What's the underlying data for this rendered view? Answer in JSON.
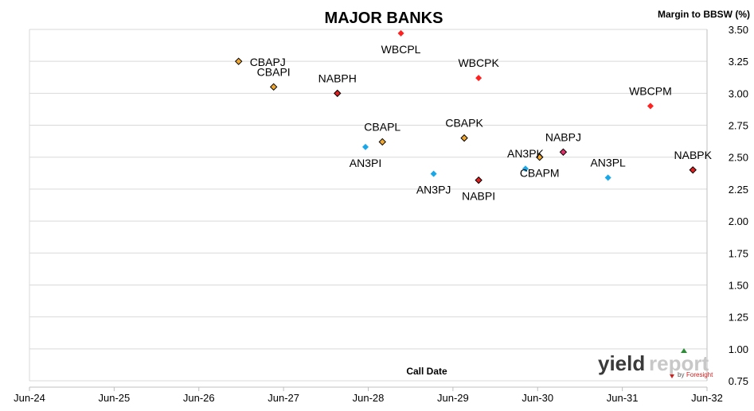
{
  "chart_data": {
    "type": "scatter",
    "title": "MAJOR BANKS",
    "xlabel": "Call Date",
    "ylabel": "Margin to BBSW (%)",
    "xlim": [
      "2024-06-01",
      "2032-06-01"
    ],
    "ylim": [
      0.75,
      3.5
    ],
    "x_ticks": [
      "Jun-24",
      "Jun-25",
      "Jun-26",
      "Jun-27",
      "Jun-28",
      "Jun-29",
      "Jun-30",
      "Jun-31",
      "Jun-32"
    ],
    "y_ticks": [
      "0.75",
      "1.00",
      "1.25",
      "1.50",
      "1.75",
      "2.00",
      "2.25",
      "2.50",
      "2.75",
      "3.00",
      "3.25",
      "3.50"
    ],
    "grid": "horizontal",
    "points": [
      {
        "label": "CBAPJ",
        "x": "2026-11-20",
        "y": 3.25,
        "color": "#f0a830",
        "label_pos": "right"
      },
      {
        "label": "CBAPI",
        "x": "2027-04-20",
        "y": 3.05,
        "color": "#f0a830",
        "label_pos": "above"
      },
      {
        "label": "NABPH",
        "x": "2028-01-20",
        "y": 3.0,
        "color": "#e02020",
        "label_pos": "above"
      },
      {
        "label": "WBCPL",
        "x": "2028-10-20",
        "y": 3.47,
        "color": "#ff2020",
        "label_pos": "below"
      },
      {
        "label": "WBCPK",
        "x": "2029-09-20",
        "y": 3.12,
        "color": "#ff2020",
        "label_pos": "above"
      },
      {
        "label": "WBCPM",
        "x": "2031-10-01",
        "y": 2.9,
        "color": "#ff2020",
        "label_pos": "above"
      },
      {
        "label": "AN3PI",
        "x": "2028-05-20",
        "y": 2.58,
        "color": "#1aa7e8",
        "label_pos": "below"
      },
      {
        "label": "CBAPL",
        "x": "2028-08-01",
        "y": 2.62,
        "color": "#f0a830",
        "label_pos": "above"
      },
      {
        "label": "CBAPK",
        "x": "2029-07-20",
        "y": 2.65,
        "color": "#f0a830",
        "label_pos": "above"
      },
      {
        "label": "AN3PJ",
        "x": "2029-03-10",
        "y": 2.37,
        "color": "#1aa7e8",
        "label_pos": "below"
      },
      {
        "label": "NABPI",
        "x": "2029-09-20",
        "y": 2.32,
        "color": "#e02020",
        "label_pos": "below"
      },
      {
        "label": "AN3PK",
        "x": "2030-04-10",
        "y": 2.41,
        "color": "#1aa7e8",
        "label_pos": "above"
      },
      {
        "label": "CBAPM",
        "x": "2030-06-10",
        "y": 2.5,
        "color": "#f0a830",
        "label_pos": "below"
      },
      {
        "label": "NABPJ",
        "x": "2030-09-20",
        "y": 2.54,
        "color": "#e0306a",
        "label_pos": "above"
      },
      {
        "label": "AN3PL",
        "x": "2031-04-01",
        "y": 2.34,
        "color": "#1aa7e8",
        "label_pos": "above"
      },
      {
        "label": "NABPK",
        "x": "2032-04-01",
        "y": 2.4,
        "color": "#e02020",
        "label_pos": "above"
      }
    ]
  },
  "logo": {
    "yield": "yield",
    "report": "report",
    "by": "by",
    "foresight": "Foresight"
  }
}
